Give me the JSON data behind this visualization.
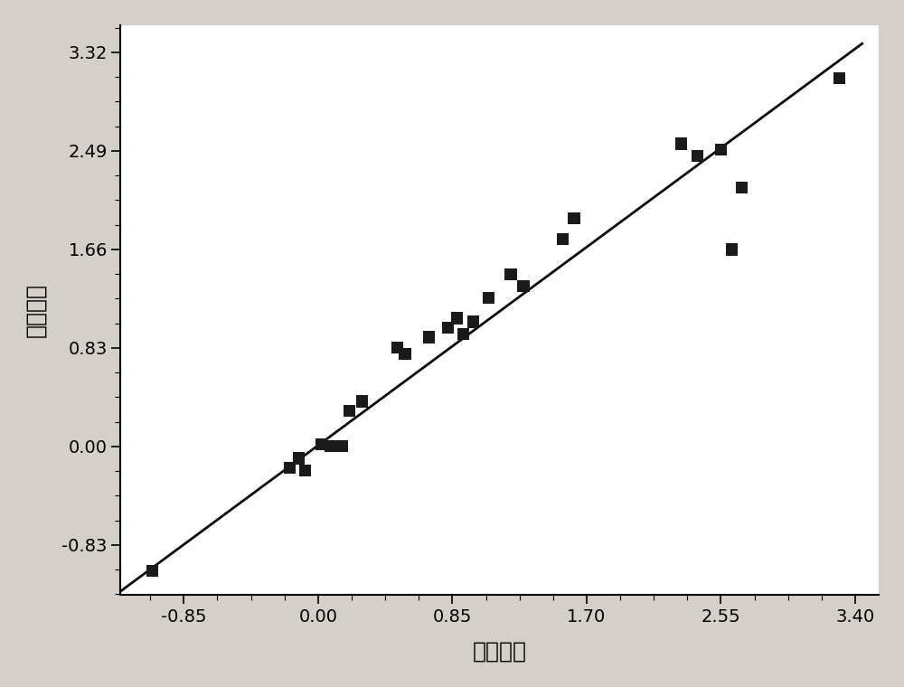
{
  "scatter_x": [
    -1.05,
    -0.18,
    -0.12,
    -0.08,
    0.02,
    0.08,
    0.15,
    0.2,
    0.28,
    0.5,
    0.55,
    0.7,
    0.82,
    0.88,
    0.92,
    0.98,
    1.08,
    1.22,
    1.3,
    1.55,
    1.62,
    2.3,
    2.4,
    2.55,
    2.62,
    2.68,
    3.3
  ],
  "scatter_y": [
    -1.05,
    -0.18,
    -0.1,
    -0.2,
    0.02,
    0.0,
    0.0,
    0.3,
    0.38,
    0.83,
    0.78,
    0.92,
    1.0,
    1.08,
    0.95,
    1.05,
    1.25,
    1.45,
    1.35,
    1.75,
    1.92,
    2.55,
    2.45,
    2.5,
    1.66,
    2.18,
    3.1
  ],
  "line_x": [
    -1.25,
    3.45
  ],
  "line_y": [
    -1.22,
    3.4
  ],
  "xlabel": "实验活性",
  "ylabel": "计算活性",
  "xlim": [
    -1.25,
    3.55
  ],
  "ylim": [
    -1.25,
    3.55
  ],
  "xticks": [
    -0.85,
    0.0,
    0.85,
    1.7,
    2.55,
    3.4
  ],
  "xtick_labels": [
    "-0.85",
    "0.00",
    "0.85",
    "1.70",
    "2.55",
    "3.40"
  ],
  "yticks": [
    -0.83,
    0.0,
    0.83,
    1.66,
    2.49,
    3.32
  ],
  "ytick_labels": [
    "-0.83",
    "0.00",
    "0.83",
    "1.66",
    "2.49",
    "3.32"
  ],
  "marker_color": "#1a1a1a",
  "line_color": "#0a0a0a",
  "plot_bg_color": "#ffffff",
  "outer_bg_color": "#d4cfc8",
  "axis_label_fontsize": 18,
  "tick_fontsize": 14
}
